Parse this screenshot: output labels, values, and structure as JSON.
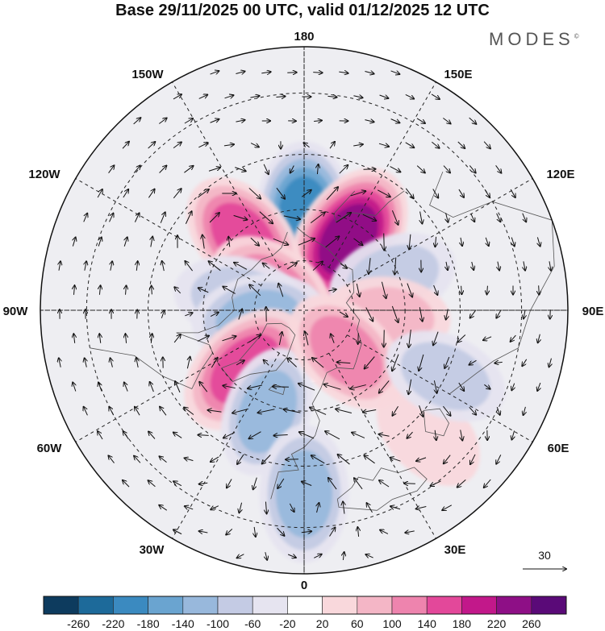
{
  "title": "Base 29/11/2025 00 UTC, valid 01/12/2025 12 UTC",
  "brand": "MODES",
  "brand_mark": "©",
  "map": {
    "projection": "north-polar-stereographic",
    "longitude_labels": {
      "top": "180",
      "top_left": "150W",
      "top_right": "150E",
      "upper_left": "120W",
      "upper_right": "120E",
      "left": "90W",
      "right": "90E",
      "lower_left": "60W",
      "lower_right": "60E",
      "bottom_left": "30W",
      "bottom_right": "30E",
      "bottom": "0"
    },
    "reference_vector_label": "30"
  },
  "colorbar": {
    "tick_labels": [
      "-260",
      "-220",
      "-180",
      "-140",
      "-100",
      "-60",
      "-20",
      "20",
      "60",
      "100",
      "140",
      "180",
      "220",
      "260"
    ],
    "colors": [
      "#0d3b5e",
      "#1d6a9a",
      "#3b8ac0",
      "#6aa4d0",
      "#98b8dc",
      "#c4cbe4",
      "#e6e4f0",
      "#ffffff",
      "#f9d8dc",
      "#f4b6c6",
      "#ee84ae",
      "#e3489a",
      "#c2188a",
      "#8e0f86",
      "#5a0a78"
    ]
  },
  "anomaly_blobs": [
    {
      "value": -200,
      "lon": 180,
      "lat": 62
    },
    {
      "value": 230,
      "lon": 148,
      "lat": 65
    },
    {
      "value": 150,
      "lon": -140,
      "lat": 62
    },
    {
      "value": 110,
      "lon": -125,
      "lat": 78
    },
    {
      "value": -100,
      "lon": -100,
      "lat": 70
    },
    {
      "value": -120,
      "lon": -80,
      "lat": 76
    },
    {
      "value": 170,
      "lon": -45,
      "lat": 65
    },
    {
      "value": -110,
      "lon": -20,
      "lat": 58
    },
    {
      "value": -140,
      "lon": 0,
      "lat": 38
    },
    {
      "value": -100,
      "lon": 110,
      "lat": 62
    },
    {
      "value": 80,
      "lon": 85,
      "lat": 65
    },
    {
      "value": 130,
      "lon": 45,
      "lat": 72
    },
    {
      "value": 60,
      "lon": 45,
      "lat": 40
    },
    {
      "value": -80,
      "lon": 65,
      "lat": 45
    }
  ]
}
